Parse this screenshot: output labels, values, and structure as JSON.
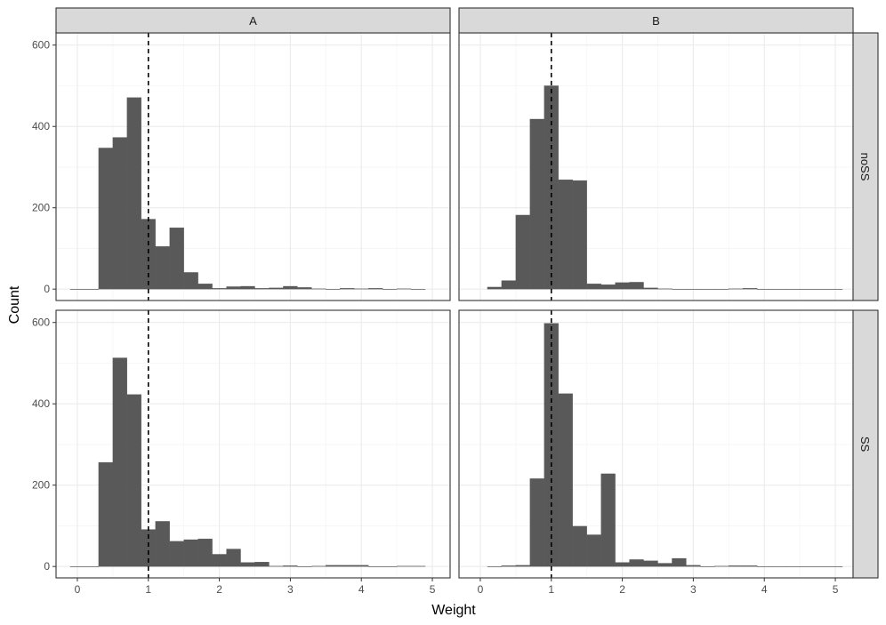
{
  "chart_data": {
    "type": "bar",
    "xlabel": "Weight",
    "ylabel": "Count",
    "xlim": [
      -0.3,
      5.25
    ],
    "ylim": [
      -28,
      630
    ],
    "x_ticks": [
      0,
      1,
      2,
      3,
      4,
      5
    ],
    "y_ticks": [
      0,
      200,
      400,
      600
    ],
    "bin_width": 0.2,
    "reference_line_x": 1,
    "column_facets": [
      "A",
      "B"
    ],
    "row_facets": [
      "noSS",
      "SS"
    ],
    "colors": {
      "bar": "#595959",
      "grid_major": "#ebebeb",
      "grid_minor": "#f5f5f5",
      "strip_bg": "#d9d9d9",
      "panel_border": "#333333"
    },
    "panels": [
      {
        "column": "A",
        "row": "noSS",
        "bins": [
          {
            "x": 0.0,
            "count": 0
          },
          {
            "x": 0.2,
            "count": 0
          },
          {
            "x": 0.4,
            "count": 347
          },
          {
            "x": 0.6,
            "count": 373
          },
          {
            "x": 0.8,
            "count": 471
          },
          {
            "x": 1.0,
            "count": 172
          },
          {
            "x": 1.2,
            "count": 105
          },
          {
            "x": 1.4,
            "count": 151
          },
          {
            "x": 1.6,
            "count": 41
          },
          {
            "x": 1.8,
            "count": 13
          },
          {
            "x": 2.0,
            "count": 2
          },
          {
            "x": 2.2,
            "count": 6
          },
          {
            "x": 2.4,
            "count": 7
          },
          {
            "x": 2.6,
            "count": 2
          },
          {
            "x": 2.8,
            "count": 3
          },
          {
            "x": 3.0,
            "count": 7
          },
          {
            "x": 3.2,
            "count": 4
          },
          {
            "x": 3.4,
            "count": 1
          },
          {
            "x": 3.6,
            "count": 0
          },
          {
            "x": 3.8,
            "count": 2
          },
          {
            "x": 4.0,
            "count": 1
          },
          {
            "x": 4.2,
            "count": 2
          },
          {
            "x": 4.4,
            "count": 0
          },
          {
            "x": 4.6,
            "count": 1
          },
          {
            "x": 4.8,
            "count": 0
          }
        ]
      },
      {
        "column": "B",
        "row": "noSS",
        "bins": [
          {
            "x": 0.2,
            "count": 5
          },
          {
            "x": 0.4,
            "count": 21
          },
          {
            "x": 0.6,
            "count": 182
          },
          {
            "x": 0.8,
            "count": 418
          },
          {
            "x": 1.0,
            "count": 500
          },
          {
            "x": 1.2,
            "count": 269
          },
          {
            "x": 1.4,
            "count": 267
          },
          {
            "x": 1.6,
            "count": 13
          },
          {
            "x": 1.8,
            "count": 11
          },
          {
            "x": 2.0,
            "count": 16
          },
          {
            "x": 2.2,
            "count": 17
          },
          {
            "x": 2.4,
            "count": 3
          },
          {
            "x": 2.6,
            "count": 1
          },
          {
            "x": 2.8,
            "count": 0
          },
          {
            "x": 3.0,
            "count": 0
          },
          {
            "x": 3.2,
            "count": 0
          },
          {
            "x": 3.4,
            "count": 0
          },
          {
            "x": 3.6,
            "count": 1
          },
          {
            "x": 3.8,
            "count": 2
          },
          {
            "x": 4.0,
            "count": 0
          },
          {
            "x": 4.2,
            "count": 0
          },
          {
            "x": 4.4,
            "count": 0
          },
          {
            "x": 4.6,
            "count": 0
          },
          {
            "x": 4.8,
            "count": 0
          },
          {
            "x": 5.0,
            "count": 0
          }
        ]
      },
      {
        "column": "A",
        "row": "SS",
        "bins": [
          {
            "x": 0.0,
            "count": 0
          },
          {
            "x": 0.2,
            "count": 0
          },
          {
            "x": 0.4,
            "count": 256
          },
          {
            "x": 0.6,
            "count": 513
          },
          {
            "x": 0.8,
            "count": 423
          },
          {
            "x": 1.0,
            "count": 91
          },
          {
            "x": 1.2,
            "count": 111
          },
          {
            "x": 1.4,
            "count": 62
          },
          {
            "x": 1.6,
            "count": 66
          },
          {
            "x": 1.8,
            "count": 68
          },
          {
            "x": 2.0,
            "count": 30
          },
          {
            "x": 2.2,
            "count": 43
          },
          {
            "x": 2.4,
            "count": 10
          },
          {
            "x": 2.6,
            "count": 11
          },
          {
            "x": 2.8,
            "count": 1
          },
          {
            "x": 3.0,
            "count": 2
          },
          {
            "x": 3.2,
            "count": 0
          },
          {
            "x": 3.4,
            "count": 1
          },
          {
            "x": 3.6,
            "count": 3
          },
          {
            "x": 3.8,
            "count": 3
          },
          {
            "x": 4.0,
            "count": 3
          },
          {
            "x": 4.2,
            "count": 0
          },
          {
            "x": 4.4,
            "count": 0
          },
          {
            "x": 4.6,
            "count": 1
          },
          {
            "x": 4.8,
            "count": 1
          }
        ]
      },
      {
        "column": "B",
        "row": "SS",
        "bins": [
          {
            "x": 0.2,
            "count": 0
          },
          {
            "x": 0.4,
            "count": 2
          },
          {
            "x": 0.6,
            "count": 3
          },
          {
            "x": 0.8,
            "count": 216
          },
          {
            "x": 1.0,
            "count": 598
          },
          {
            "x": 1.2,
            "count": 425
          },
          {
            "x": 1.4,
            "count": 99
          },
          {
            "x": 1.6,
            "count": 78
          },
          {
            "x": 1.8,
            "count": 228
          },
          {
            "x": 2.0,
            "count": 10
          },
          {
            "x": 2.2,
            "count": 17
          },
          {
            "x": 2.4,
            "count": 14
          },
          {
            "x": 2.6,
            "count": 8
          },
          {
            "x": 2.8,
            "count": 20
          },
          {
            "x": 3.0,
            "count": 3
          },
          {
            "x": 3.2,
            "count": 0
          },
          {
            "x": 3.4,
            "count": 1
          },
          {
            "x": 3.6,
            "count": 2
          },
          {
            "x": 3.8,
            "count": 2
          },
          {
            "x": 4.0,
            "count": 0
          },
          {
            "x": 4.2,
            "count": 0
          },
          {
            "x": 4.4,
            "count": 0
          },
          {
            "x": 4.6,
            "count": 0
          },
          {
            "x": 4.8,
            "count": 0
          },
          {
            "x": 5.0,
            "count": 0
          }
        ]
      }
    ]
  }
}
